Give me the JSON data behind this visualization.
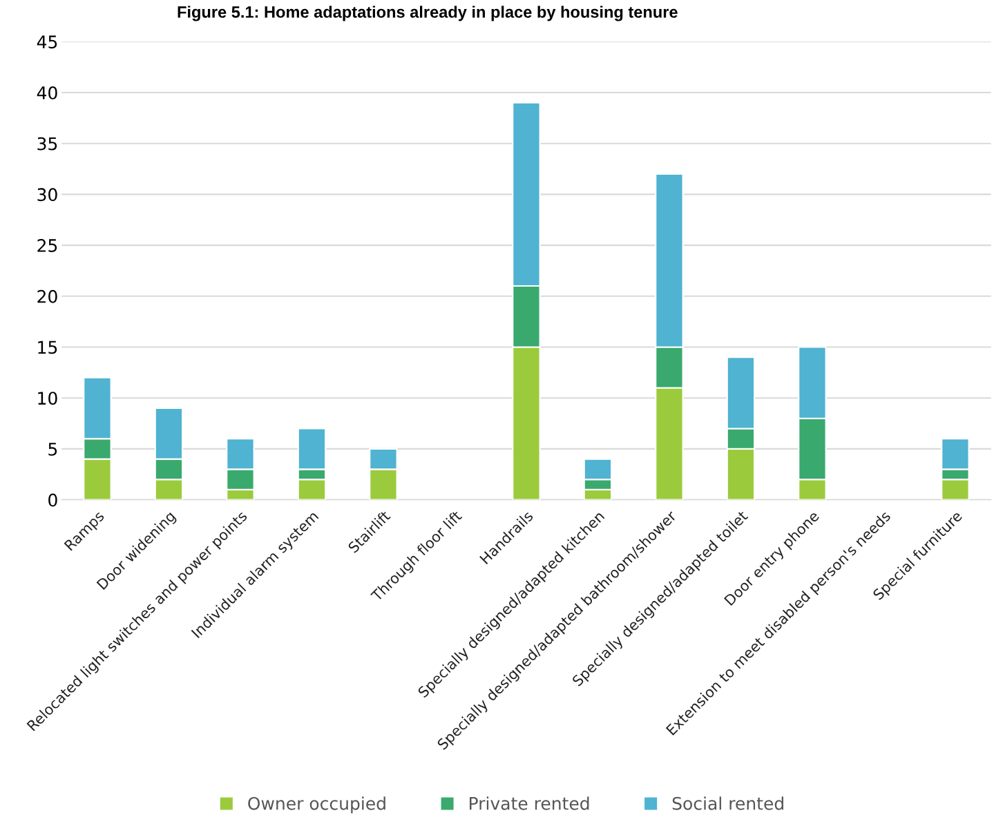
{
  "chart_data": {
    "type": "bar",
    "title": "Figure 5.1: Home adaptations already in place by housing tenure",
    "categories": [
      "Ramps",
      "Door widening",
      "Relocated light switches and power points",
      "Individual alarm system",
      "Stairlift",
      "Through floor lift",
      "Handrails",
      "Specially designed/adapted kitchen",
      "Specially designed/adapted bathroom/shower",
      "Specially designed/adapted toilet",
      "Door entry phone",
      "Extension to meet disabled person's needs",
      "Special furniture"
    ],
    "series": [
      {
        "name": "Owner occupied",
        "color": "#9bcb3c",
        "values": [
          4,
          2,
          1,
          2,
          3,
          null,
          15,
          1,
          11,
          5,
          2,
          null,
          2
        ]
      },
      {
        "name": "Private rented",
        "color": "#3aa96e",
        "values": [
          2,
          2,
          2,
          1,
          null,
          null,
          6,
          1,
          4,
          2,
          6,
          null,
          1
        ]
      },
      {
        "name": "Social rented",
        "color": "#4fb3d1",
        "values": [
          6,
          5,
          3,
          4,
          2,
          null,
          18,
          2,
          17,
          7,
          7,
          null,
          3
        ]
      }
    ],
    "stacked": true,
    "ylim": [
      0,
      45
    ],
    "yticks": [
      0,
      5,
      10,
      15,
      20,
      25,
      30,
      35,
      40,
      45
    ],
    "grid": "y",
    "legend": "bottom"
  }
}
